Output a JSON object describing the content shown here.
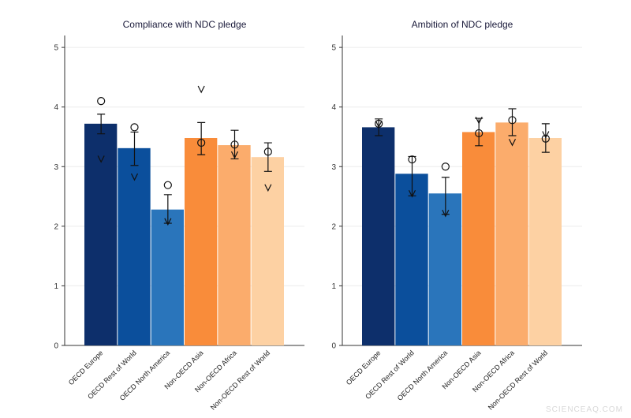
{
  "chart_data": [
    {
      "type": "bar",
      "title": "Compliance with NDC pledge",
      "categories": [
        "OECD Europe",
        "OECD Rest of World",
        "OECD North America",
        "Non-OECD Asia",
        "Non-OECD Africa",
        "Non-OECD Rest of World"
      ],
      "values": [
        3.72,
        3.31,
        2.28,
        3.48,
        3.36,
        3.16
      ],
      "ci_low": [
        3.55,
        3.02,
        2.05,
        3.2,
        3.13,
        2.92
      ],
      "ci_high": [
        3.88,
        3.58,
        2.53,
        3.74,
        3.61,
        3.4
      ],
      "circle": [
        4.1,
        3.66,
        2.69,
        3.4,
        3.37,
        3.25
      ],
      "v_marker": [
        3.13,
        2.83,
        2.08,
        4.3,
        3.2,
        2.65
      ],
      "colors": [
        "#0d2f6b",
        "#0b4f9c",
        "#2a75bb",
        "#f98c3a",
        "#fbac6c",
        "#fdd1a3"
      ],
      "ylim": [
        0,
        5.2
      ],
      "yticks": [
        0,
        1,
        2,
        3,
        4,
        5
      ],
      "grid": true
    },
    {
      "type": "bar",
      "title": "Ambition of NDC pledge",
      "categories": [
        "OECD Europe",
        "OECD Rest of World",
        "OECD North America",
        "Non-OECD Asia",
        "Non-OECD Africa",
        "Non-OECD Rest of World"
      ],
      "values": [
        3.66,
        2.88,
        2.55,
        3.58,
        3.74,
        3.48
      ],
      "ci_low": [
        3.52,
        2.51,
        2.2,
        3.35,
        3.52,
        3.24
      ],
      "ci_high": [
        3.8,
        3.17,
        2.82,
        3.81,
        3.97,
        3.72
      ],
      "circle": [
        3.72,
        3.12,
        3.0,
        3.56,
        3.78,
        3.47
      ],
      "v_marker": [
        3.72,
        2.55,
        2.22,
        3.78,
        3.41,
        3.54
      ],
      "colors": [
        "#0d2f6b",
        "#0b4f9c",
        "#2a75bb",
        "#f98c3a",
        "#fbac6c",
        "#fdd1a3"
      ],
      "ylim": [
        0,
        5.2
      ],
      "yticks": [
        0,
        1,
        2,
        3,
        4,
        5
      ],
      "grid": true
    }
  ],
  "watermark": "SCIENCEAQ.COM"
}
